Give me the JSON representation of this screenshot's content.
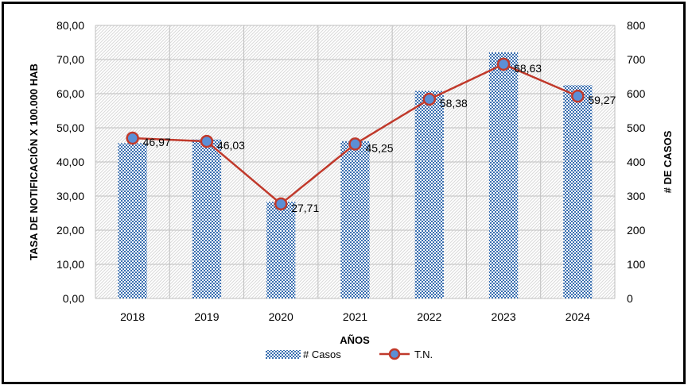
{
  "chart_data": {
    "type": "bar",
    "title": "",
    "categories": [
      "2018",
      "2019",
      "2020",
      "2021",
      "2022",
      "2023",
      "2024"
    ],
    "xlabel": "AÑOS",
    "ylabel_left": "TASA DE NOTIFICACIÓN X 100.000 HAB",
    "ylabel_right": "# DE CASOS",
    "y_left_range": [
      0,
      80
    ],
    "y_left_ticks": [
      "0,00",
      "10,00",
      "20,00",
      "30,00",
      "40,00",
      "50,00",
      "60,00",
      "70,00",
      "80,00"
    ],
    "y_right_range": [
      0,
      800
    ],
    "y_right_ticks": [
      "0",
      "100",
      "200",
      "300",
      "400",
      "500",
      "600",
      "700",
      "800"
    ],
    "grid": true,
    "legend_position": "bottom",
    "series": [
      {
        "name": "# Casos",
        "type": "bar",
        "axis": "right",
        "color": "#3a6fb0",
        "values": [
          455,
          466,
          283,
          461,
          608,
          721,
          625
        ]
      },
      {
        "name": "T.N.",
        "type": "line",
        "axis": "left",
        "line_color": "#c0392b",
        "marker_color": "#5b8fd6",
        "values": [
          46.97,
          46.03,
          27.71,
          45.25,
          58.38,
          68.63,
          59.27
        ],
        "labels": [
          "46,97",
          "46,03",
          "27,71",
          "45,25",
          "58,38",
          "68,63",
          "59,27"
        ]
      }
    ]
  }
}
